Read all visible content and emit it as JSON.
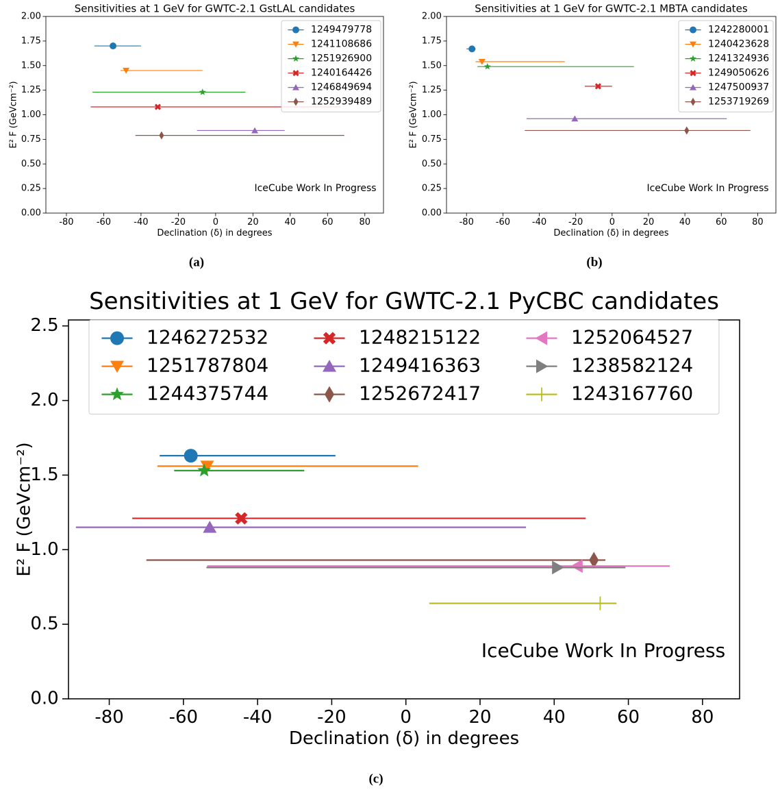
{
  "chart_data": [
    {
      "type": "errorbar",
      "title": "Sensitivities at 1 GeV for GWTC-2.1 GstLAL candidates",
      "xlabel": "Declination (δ) in degrees",
      "ylabel": "E² F (GeVcm⁻²)",
      "annotation": "IceCube Work In Progress",
      "annotation_color": "#ff0000",
      "caption": "(a)",
      "xlim": [
        -91,
        90
      ],
      "xticks": [
        -80,
        -60,
        -40,
        -20,
        0,
        20,
        40,
        60,
        80
      ],
      "ylim": [
        0,
        2
      ],
      "yticks": [
        {
          "value": 0,
          "label": "0.00"
        },
        {
          "value": 0.25,
          "label": "0.25"
        },
        {
          "value": 0.5,
          "label": "0.50"
        },
        {
          "value": 0.75,
          "label": "0.75"
        },
        {
          "value": 1,
          "label": "1.00"
        },
        {
          "value": 1.25,
          "label": "1.25"
        },
        {
          "value": 1.5,
          "label": "1.50"
        },
        {
          "value": 1.75,
          "label": "1.75"
        },
        {
          "value": 2,
          "label": "2.00"
        }
      ],
      "grid": false,
      "legend": "upper right",
      "legend_columns": 1,
      "series": [
        {
          "name": "1249479778",
          "color": "#1f77b4",
          "marker": "o",
          "x": [
            -55
          ],
          "values": [
            1.7
          ],
          "xmin": [
            -65
          ],
          "xmax": [
            -40
          ]
        },
        {
          "name": "1241108686",
          "color": "#ff7f0e",
          "marker": "v",
          "x": [
            -48
          ],
          "values": [
            1.45
          ],
          "xmin": [
            -51
          ],
          "xmax": [
            -7
          ]
        },
        {
          "name": "1251926900",
          "color": "#2ca02c",
          "marker": "*",
          "x": [
            -7
          ],
          "values": [
            1.23
          ],
          "xmin": [
            -66
          ],
          "xmax": [
            16
          ]
        },
        {
          "name": "1240164426",
          "color": "#d62728",
          "marker": "X",
          "x": [
            -31
          ],
          "values": [
            1.08
          ],
          "xmin": [
            -67
          ],
          "xmax": [
            67
          ]
        },
        {
          "name": "1246849694",
          "color": "#9467bd",
          "marker": "^",
          "x": [
            21
          ],
          "values": [
            0.84
          ],
          "xmin": [
            -10
          ],
          "xmax": [
            37
          ]
        },
        {
          "name": "1252939489",
          "color": "#8c564b",
          "marker": "d",
          "x": [
            -29
          ],
          "values": [
            0.79
          ],
          "xmin": [
            -43
          ],
          "xmax": [
            69
          ]
        }
      ]
    },
    {
      "type": "errorbar",
      "title": "Sensitivities at 1 GeV for GWTC-2.1 MBTA candidates",
      "xlabel": "Declination (δ) in degrees",
      "ylabel": "E² F (GeVcm⁻²)",
      "annotation": "IceCube Work In Progress",
      "annotation_color": "#ff0000",
      "caption": "(b)",
      "xlim": [
        -91,
        90
      ],
      "xticks": [
        -80,
        -60,
        -40,
        -20,
        0,
        20,
        40,
        60,
        80
      ],
      "ylim": [
        0,
        2
      ],
      "yticks": [
        {
          "value": 0,
          "label": "0.00"
        },
        {
          "value": 0.25,
          "label": "0.25"
        },
        {
          "value": 0.5,
          "label": "0.50"
        },
        {
          "value": 0.75,
          "label": "0.75"
        },
        {
          "value": 1,
          "label": "1.00"
        },
        {
          "value": 1.25,
          "label": "1.25"
        },
        {
          "value": 1.5,
          "label": "1.50"
        },
        {
          "value": 1.75,
          "label": "1.75"
        },
        {
          "value": 2,
          "label": "2.00"
        }
      ],
      "grid": false,
      "legend": "upper right",
      "legend_columns": 1,
      "series": [
        {
          "name": "1242280001",
          "color": "#1f77b4",
          "marker": "o",
          "x": [
            -77
          ],
          "values": [
            1.67
          ],
          "xmin": [
            -80
          ],
          "xmax": [
            -75
          ]
        },
        {
          "name": "1240423628",
          "color": "#ff7f0e",
          "marker": "v",
          "x": [
            -71.5
          ],
          "values": [
            1.54
          ],
          "xmin": [
            -75
          ],
          "xmax": [
            -26
          ]
        },
        {
          "name": "1241324936",
          "color": "#2ca02c",
          "marker": "*",
          "x": [
            -68.5
          ],
          "values": [
            1.49
          ],
          "xmin": [
            -74
          ],
          "xmax": [
            12
          ]
        },
        {
          "name": "1249050626",
          "color": "#d62728",
          "marker": "X",
          "x": [
            -7.7
          ],
          "values": [
            1.29
          ],
          "xmin": [
            -15
          ],
          "xmax": [
            0
          ]
        },
        {
          "name": "1247500937",
          "color": "#9467bd",
          "marker": "^",
          "x": [
            -20.5
          ],
          "values": [
            0.96
          ],
          "xmin": [
            -47
          ],
          "xmax": [
            63
          ]
        },
        {
          "name": "1253719269",
          "color": "#8c564b",
          "marker": "d",
          "x": [
            41
          ],
          "values": [
            0.84
          ],
          "xmin": [
            -48
          ],
          "xmax": [
            76
          ]
        }
      ]
    },
    {
      "type": "errorbar",
      "title": "Sensitivities at 1 GeV for GWTC-2.1 PyCBC candidates",
      "xlabel": "Declination (δ) in degrees",
      "ylabel": "E² F (GeVcm⁻²)",
      "annotation": "IceCube Work In Progress",
      "annotation_color": "#ff0000",
      "caption": "(c)",
      "xlim": [
        -91,
        90
      ],
      "xticks": [
        -80,
        -60,
        -40,
        -20,
        0,
        20,
        40,
        60,
        80
      ],
      "ylim": [
        0,
        2.54
      ],
      "yticks": [
        {
          "value": 0,
          "label": "0.0"
        },
        0.5,
        {
          "value": 1,
          "label": "1.0"
        },
        1.5,
        {
          "value": 2,
          "label": "2.0"
        },
        2.5
      ],
      "grid": false,
      "legend": "upper center",
      "legend_columns": 3,
      "series": [
        {
          "name": "1246272532",
          "color": "#1f77b4",
          "marker": "o",
          "x": [
            -58
          ],
          "values": [
            1.63
          ],
          "xmin": [
            -66.4
          ],
          "xmax": [
            -19
          ]
        },
        {
          "name": "1251787804",
          "color": "#ff7f0e",
          "marker": "v",
          "x": [
            -53.6
          ],
          "values": [
            1.56
          ],
          "xmin": [
            -67
          ],
          "xmax": [
            3.3
          ]
        },
        {
          "name": "1244375744",
          "color": "#2ca02c",
          "marker": "*",
          "x": [
            -54.4
          ],
          "values": [
            1.53
          ],
          "xmin": [
            -62.5
          ],
          "xmax": [
            -27.4
          ]
        },
        {
          "name": "1248215122",
          "color": "#d62728",
          "marker": "X",
          "x": [
            -44.4
          ],
          "values": [
            1.21
          ],
          "xmin": [
            -73.8
          ],
          "xmax": [
            48.5
          ]
        },
        {
          "name": "1249416363",
          "color": "#9467bd",
          "marker": "^",
          "x": [
            -52.9
          ],
          "values": [
            1.15
          ],
          "xmin": [
            -89
          ],
          "xmax": [
            32.4
          ]
        },
        {
          "name": "1252672417",
          "color": "#8c564b",
          "marker": "d",
          "x": [
            50.7
          ],
          "values": [
            0.93
          ],
          "xmin": [
            -70
          ],
          "xmax": [
            53.8
          ]
        },
        {
          "name": "1252064527",
          "color": "#e377c2",
          "marker": "<",
          "x": [
            46.2
          ],
          "values": [
            0.89
          ],
          "xmin": [
            -53.6
          ],
          "xmax": [
            71.2
          ]
        },
        {
          "name": "1238582124",
          "color": "#7f7f7f",
          "marker": ">",
          "x": [
            40.9
          ],
          "values": [
            0.88
          ],
          "xmin": [
            -53.8
          ],
          "xmax": [
            59.2
          ]
        },
        {
          "name": "1243167760",
          "color": "#bcbd22",
          "marker": "+",
          "x": [
            52.4
          ],
          "values": [
            0.64
          ],
          "xmin": [
            6.3
          ],
          "xmax": [
            56.8
          ]
        }
      ]
    }
  ]
}
